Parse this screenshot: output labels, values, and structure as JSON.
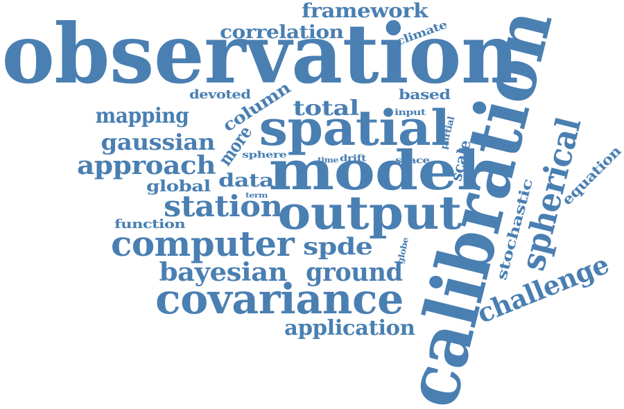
{
  "color": "#4a7fb2",
  "words": [
    {
      "id": "observation",
      "text": "observation"
    },
    {
      "id": "calibration",
      "text": "calibration"
    },
    {
      "id": "model",
      "text": "model"
    },
    {
      "id": "spatial",
      "text": "spatial"
    },
    {
      "id": "output",
      "text": "output"
    },
    {
      "id": "covariance",
      "text": "covariance"
    },
    {
      "id": "computer",
      "text": "computer"
    },
    {
      "id": "spherical",
      "text": "spherical"
    },
    {
      "id": "station",
      "text": "station"
    },
    {
      "id": "challenge",
      "text": "challenge"
    },
    {
      "id": "approach",
      "text": "approach"
    },
    {
      "id": "bayesian",
      "text": "bayesian"
    },
    {
      "id": "ground",
      "text": "ground"
    },
    {
      "id": "gaussian",
      "text": "gaussian"
    },
    {
      "id": "mapping",
      "text": "mapping"
    },
    {
      "id": "spde",
      "text": "spde"
    },
    {
      "id": "application",
      "text": "application"
    },
    {
      "id": "framework",
      "text": "framework"
    },
    {
      "id": "correlation",
      "text": "correlation"
    },
    {
      "id": "total",
      "text": "total"
    },
    {
      "id": "column",
      "text": "column"
    },
    {
      "id": "more",
      "text": "more"
    },
    {
      "id": "stochastic",
      "text": "stochastic"
    },
    {
      "id": "equation",
      "text": "equation"
    },
    {
      "id": "data",
      "text": "data"
    },
    {
      "id": "global",
      "text": "global"
    },
    {
      "id": "function",
      "text": "function"
    },
    {
      "id": "scale",
      "text": "scale"
    },
    {
      "id": "devoted",
      "text": "devoted"
    },
    {
      "id": "based",
      "text": "based"
    },
    {
      "id": "climate",
      "text": "climate"
    },
    {
      "id": "sphere",
      "text": "sphere"
    },
    {
      "id": "partial",
      "text": "partial"
    },
    {
      "id": "space",
      "text": "space"
    },
    {
      "id": "drift",
      "text": "drift"
    },
    {
      "id": "time",
      "text": "time"
    },
    {
      "id": "input",
      "text": "input"
    },
    {
      "id": "term",
      "text": "term"
    },
    {
      "id": "globe",
      "text": "globe"
    }
  ]
}
